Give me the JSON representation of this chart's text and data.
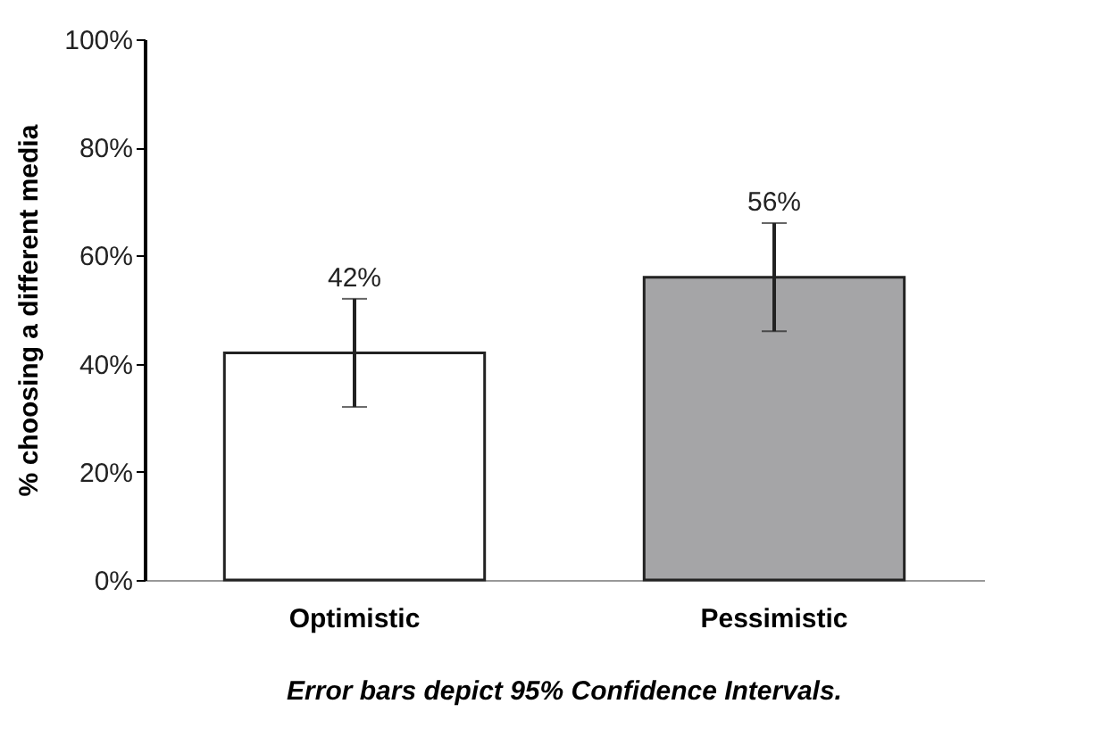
{
  "chart_data": {
    "type": "bar",
    "ylabel": "% choosing a different media",
    "categories": [
      "Optimistic",
      "Pessimistic"
    ],
    "values": [
      42,
      56
    ],
    "colors": [
      "#ffffff",
      "#a5a5a7"
    ],
    "errors": [
      10,
      10
    ],
    "value_labels": [
      "42%",
      "56%"
    ],
    "ylim": [
      0,
      100
    ],
    "yticks": [
      {
        "value": 0,
        "label": "0%"
      },
      {
        "value": 20,
        "label": "20%"
      },
      {
        "value": 40,
        "label": "40%"
      },
      {
        "value": 60,
        "label": "60%"
      },
      {
        "value": 80,
        "label": "80%"
      },
      {
        "value": 100,
        "label": "100%"
      }
    ],
    "grid": false,
    "annotations": [
      "Error bars depict 95% Confidence Intervals."
    ]
  }
}
